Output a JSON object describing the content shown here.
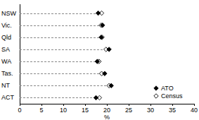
{
  "chart_data": {
    "type": "dot",
    "orientation": "horizontal",
    "categories": [
      "NSW",
      "Vic.",
      "Qld",
      "SA",
      "WA",
      "Tas.",
      "NT",
      "ACT"
    ],
    "series": [
      {
        "name": "ATO",
        "color": "#000000",
        "marker": "diamond",
        "values": [
          18.0,
          19.0,
          18.7,
          20.5,
          17.8,
          19.5,
          21.0,
          17.5
        ]
      },
      {
        "name": "Census",
        "color": "#000000",
        "marker": "diamond-open",
        "values": [
          18.8,
          18.7,
          18.9,
          19.8,
          18.2,
          18.8,
          20.5,
          18.3
        ]
      }
    ],
    "x_label": "%",
    "xlim": [
      0,
      40
    ],
    "xticks": [
      0,
      5,
      10,
      15,
      20,
      25,
      30,
      35,
      40
    ],
    "grid": false,
    "legend": "lower right"
  }
}
